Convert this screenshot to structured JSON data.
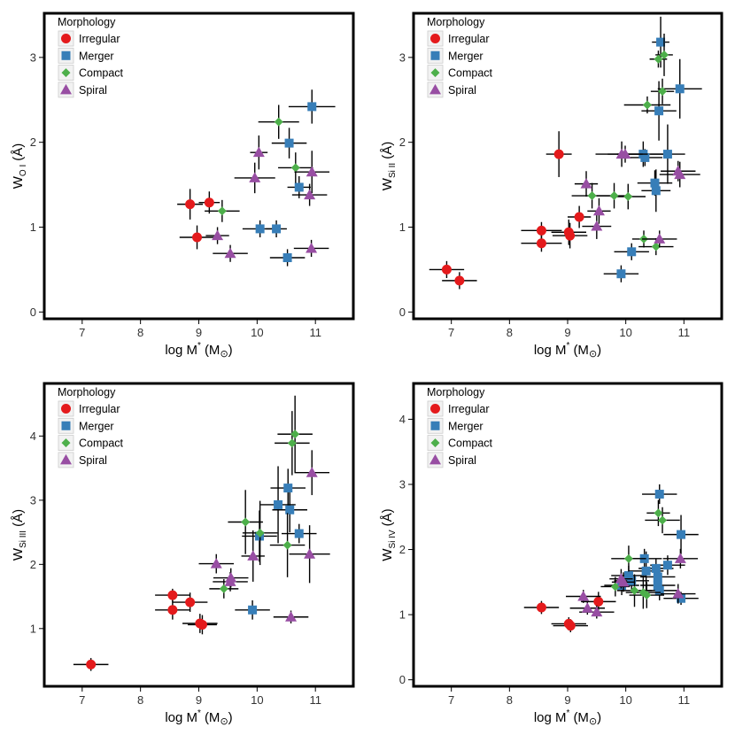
{
  "legend": {
    "title": "Morphology",
    "entries": [
      "Irregular",
      "Merger",
      "Compact",
      "Spiral"
    ]
  },
  "colors": {
    "Irregular": "#e41a1c",
    "Merger": "#377eb8",
    "Compact": "#4daf4a",
    "Spiral": "#984ea3",
    "errorbar": "#000000",
    "axes": "#000000"
  },
  "chart_data": [
    {
      "type": "scatter",
      "ylabel_base": "W",
      "ylabel_sub": "O I",
      "ylabel_unit": "(Å)",
      "xlabel_main": "log M",
      "xlabel_sup": "*",
      "xlabel_unit": "(M",
      "xlabel_unit_sym": "⊙",
      "xlabel_close": ")",
      "xlim": [
        6.35,
        11.65
      ],
      "ylim": [
        -0.08,
        3.52
      ],
      "xticks": [
        "7",
        "8",
        "9",
        "10",
        "11"
      ],
      "yticks": [
        "0",
        "1",
        "2",
        "3"
      ],
      "legend": "top-left",
      "grid": false,
      "series": [
        {
          "name": "Irregular",
          "marker": "circle",
          "points": [
            {
              "x": 8.85,
              "y": 1.27,
              "xerr": 0.22,
              "yerr": 0.18
            },
            {
              "x": 9.18,
              "y": 1.29,
              "xerr": 0.18,
              "yerr": 0.13
            },
            {
              "x": 8.97,
              "y": 0.88,
              "xerr": 0.3,
              "yerr": 0.14
            }
          ]
        },
        {
          "name": "Merger",
          "marker": "square",
          "points": [
            {
              "x": 10.94,
              "y": 2.42,
              "xerr": 0.4,
              "yerr": 0.2
            },
            {
              "x": 10.55,
              "y": 1.99,
              "xerr": 0.3,
              "yerr": 0.18
            },
            {
              "x": 10.72,
              "y": 1.47,
              "xerr": 0.2,
              "yerr": 0.13
            },
            {
              "x": 10.05,
              "y": 0.98,
              "xerr": 0.3,
              "yerr": 0.1
            },
            {
              "x": 10.33,
              "y": 0.98,
              "xerr": 0.18,
              "yerr": 0.1
            },
            {
              "x": 10.52,
              "y": 0.64,
              "xerr": 0.3,
              "yerr": 0.1
            }
          ]
        },
        {
          "name": "Compact",
          "marker": "diamond",
          "points": [
            {
              "x": 10.37,
              "y": 2.24,
              "xerr": 0.35,
              "yerr": 0.2
            },
            {
              "x": 10.66,
              "y": 1.7,
              "xerr": 0.3,
              "yerr": 0.18
            },
            {
              "x": 9.4,
              "y": 1.19,
              "xerr": 0.3,
              "yerr": 0.13
            }
          ]
        },
        {
          "name": "Spiral",
          "marker": "triangle",
          "points": [
            {
              "x": 10.03,
              "y": 1.88,
              "xerr": 0.15,
              "yerr": 0.2
            },
            {
              "x": 9.96,
              "y": 1.58,
              "xerr": 0.35,
              "yerr": 0.18
            },
            {
              "x": 10.94,
              "y": 1.65,
              "xerr": 0.3,
              "yerr": 0.25
            },
            {
              "x": 10.9,
              "y": 1.38,
              "xerr": 0.3,
              "yerr": 0.13
            },
            {
              "x": 9.32,
              "y": 0.9,
              "xerr": 0.2,
              "yerr": 0.1
            },
            {
              "x": 9.54,
              "y": 0.69,
              "xerr": 0.3,
              "yerr": 0.1
            },
            {
              "x": 10.93,
              "y": 0.75,
              "xerr": 0.3,
              "yerr": 0.1
            }
          ]
        }
      ]
    },
    {
      "type": "scatter",
      "ylabel_base": "W",
      "ylabel_sub": "Si II",
      "ylabel_unit": "(Å)",
      "xlabel_main": "log M",
      "xlabel_sup": "*",
      "xlabel_unit": "(M",
      "xlabel_unit_sym": "⊙",
      "xlabel_close": ")",
      "xlim": [
        6.35,
        11.65
      ],
      "ylim": [
        -0.08,
        3.52
      ],
      "xticks": [
        "7",
        "8",
        "9",
        "10",
        "11"
      ],
      "yticks": [
        "0",
        "1",
        "2",
        "3"
      ],
      "legend": "top-left",
      "grid": false,
      "series": [
        {
          "name": "Irregular",
          "marker": "circle",
          "points": [
            {
              "x": 8.85,
              "y": 1.86,
              "xerr": 0.22,
              "yerr": 0.27
            },
            {
              "x": 9.2,
              "y": 1.12,
              "xerr": 0.2,
              "yerr": 0.13
            },
            {
              "x": 8.55,
              "y": 0.96,
              "xerr": 0.35,
              "yerr": 0.1
            },
            {
              "x": 9.02,
              "y": 0.94,
              "xerr": 0.3,
              "yerr": 0.15
            },
            {
              "x": 9.04,
              "y": 0.9,
              "xerr": 0.3,
              "yerr": 0.15
            },
            {
              "x": 8.55,
              "y": 0.81,
              "xerr": 0.35,
              "yerr": 0.1
            },
            {
              "x": 6.92,
              "y": 0.5,
              "xerr": 0.3,
              "yerr": 0.1
            },
            {
              "x": 7.14,
              "y": 0.37,
              "xerr": 0.3,
              "yerr": 0.1
            }
          ]
        },
        {
          "name": "Merger",
          "marker": "square",
          "points": [
            {
              "x": 10.6,
              "y": 3.18,
              "xerr": 0.15,
              "yerr": 0.3
            },
            {
              "x": 10.93,
              "y": 2.63,
              "xerr": 0.38,
              "yerr": 0.35
            },
            {
              "x": 10.57,
              "y": 2.37,
              "xerr": 0.3,
              "yerr": 0.35
            },
            {
              "x": 10.3,
              "y": 1.86,
              "xerr": 0.45,
              "yerr": 0.15
            },
            {
              "x": 10.33,
              "y": 1.82,
              "xerr": 0.3,
              "yerr": 0.1
            },
            {
              "x": 10.72,
              "y": 1.86,
              "xerr": 0.3,
              "yerr": 0.35
            },
            {
              "x": 10.5,
              "y": 1.52,
              "xerr": 0.3,
              "yerr": 0.15
            },
            {
              "x": 10.52,
              "y": 1.43,
              "xerr": 0.25,
              "yerr": 0.25
            },
            {
              "x": 10.1,
              "y": 0.71,
              "xerr": 0.3,
              "yerr": 0.1
            },
            {
              "x": 9.92,
              "y": 0.45,
              "xerr": 0.3,
              "yerr": 0.1
            }
          ]
        },
        {
          "name": "Compact",
          "marker": "diamond",
          "points": [
            {
              "x": 10.66,
              "y": 3.03,
              "xerr": 0.15,
              "yerr": 0.25
            },
            {
              "x": 10.56,
              "y": 2.98,
              "xerr": 0.15,
              "yerr": 0.1
            },
            {
              "x": 10.63,
              "y": 2.6,
              "xerr": 0.2,
              "yerr": 0.15
            },
            {
              "x": 10.37,
              "y": 2.44,
              "xerr": 0.4,
              "yerr": 0.1
            },
            {
              "x": 9.42,
              "y": 1.37,
              "xerr": 0.35,
              "yerr": 0.15
            },
            {
              "x": 9.8,
              "y": 1.37,
              "xerr": 0.3,
              "yerr": 0.15
            },
            {
              "x": 10.04,
              "y": 1.36,
              "xerr": 0.3,
              "yerr": 0.15
            },
            {
              "x": 10.31,
              "y": 0.86,
              "xerr": 0.2,
              "yerr": 0.1
            },
            {
              "x": 10.52,
              "y": 0.77,
              "xerr": 0.3,
              "yerr": 0.1
            }
          ]
        },
        {
          "name": "Spiral",
          "marker": "triangle",
          "points": [
            {
              "x": 9.93,
              "y": 1.86,
              "xerr": 0.45,
              "yerr": 0.15
            },
            {
              "x": 9.99,
              "y": 1.86,
              "xerr": 0.3,
              "yerr": 0.1
            },
            {
              "x": 10.9,
              "y": 1.66,
              "xerr": 0.3,
              "yerr": 0.12
            },
            {
              "x": 10.93,
              "y": 1.62,
              "xerr": 0.35,
              "yerr": 0.15
            },
            {
              "x": 9.32,
              "y": 1.51,
              "xerr": 0.2,
              "yerr": 0.15
            },
            {
              "x": 9.54,
              "y": 1.19,
              "xerr": 0.2,
              "yerr": 0.15
            },
            {
              "x": 9.5,
              "y": 1.01,
              "xerr": 0.25,
              "yerr": 0.15
            },
            {
              "x": 10.58,
              "y": 0.86,
              "xerr": 0.3,
              "yerr": 0.1
            }
          ]
        }
      ]
    },
    {
      "type": "scatter",
      "ylabel_base": "W",
      "ylabel_sub": "Si III",
      "ylabel_unit": "(Å)",
      "xlabel_main": "log M",
      "xlabel_sup": "*",
      "xlabel_unit": "(M",
      "xlabel_unit_sym": "⊙",
      "xlabel_close": ")",
      "xlim": [
        6.35,
        11.65
      ],
      "ylim": [
        0.1,
        4.82
      ],
      "xticks": [
        "7",
        "8",
        "9",
        "10",
        "11"
      ],
      "yticks": [
        "1",
        "2",
        "3",
        "4"
      ],
      "legend": "top-left",
      "grid": false,
      "series": [
        {
          "name": "Irregular",
          "marker": "circle",
          "points": [
            {
              "x": 8.55,
              "y": 1.52,
              "xerr": 0.3,
              "yerr": 0.1
            },
            {
              "x": 8.85,
              "y": 1.41,
              "xerr": 0.3,
              "yerr": 0.15
            },
            {
              "x": 8.55,
              "y": 1.29,
              "xerr": 0.3,
              "yerr": 0.15
            },
            {
              "x": 9.02,
              "y": 1.08,
              "xerr": 0.3,
              "yerr": 0.15
            },
            {
              "x": 9.06,
              "y": 1.06,
              "xerr": 0.25,
              "yerr": 0.15
            },
            {
              "x": 7.15,
              "y": 0.44,
              "xerr": 0.3,
              "yerr": 0.1
            }
          ]
        },
        {
          "name": "Merger",
          "marker": "square",
          "points": [
            {
              "x": 10.53,
              "y": 3.19,
              "xerr": 0.3,
              "yerr": 0.3
            },
            {
              "x": 10.36,
              "y": 2.93,
              "xerr": 0.3,
              "yerr": 0.6
            },
            {
              "x": 10.56,
              "y": 2.85,
              "xerr": 0.3,
              "yerr": 0.35
            },
            {
              "x": 10.72,
              "y": 2.48,
              "xerr": 0.3,
              "yerr": 0.15
            },
            {
              "x": 10.04,
              "y": 2.44,
              "xerr": 0.3,
              "yerr": 0.4
            },
            {
              "x": 9.92,
              "y": 1.29,
              "xerr": 0.3,
              "yerr": 0.15
            }
          ]
        },
        {
          "name": "Compact",
          "marker": "diamond",
          "points": [
            {
              "x": 10.65,
              "y": 4.03,
              "xerr": 0.3,
              "yerr": 0.6
            },
            {
              "x": 10.6,
              "y": 3.89,
              "xerr": 0.3,
              "yerr": 0.5
            },
            {
              "x": 9.8,
              "y": 2.66,
              "xerr": 0.3,
              "yerr": 0.5
            },
            {
              "x": 10.05,
              "y": 2.49,
              "xerr": 0.3,
              "yerr": 0.5
            },
            {
              "x": 10.52,
              "y": 2.3,
              "xerr": 0.3,
              "yerr": 0.5
            },
            {
              "x": 9.43,
              "y": 1.62,
              "xerr": 0.25,
              "yerr": 0.15
            }
          ]
        },
        {
          "name": "Spiral",
          "marker": "triangle",
          "points": [
            {
              "x": 10.94,
              "y": 3.43,
              "xerr": 0.3,
              "yerr": 0.35
            },
            {
              "x": 9.3,
              "y": 2.01,
              "xerr": 0.3,
              "yerr": 0.15
            },
            {
              "x": 9.93,
              "y": 2.13,
              "xerr": 0.2,
              "yerr": 0.4
            },
            {
              "x": 10.9,
              "y": 2.16,
              "xerr": 0.35,
              "yerr": 0.45
            },
            {
              "x": 9.55,
              "y": 1.79,
              "xerr": 0.3,
              "yerr": 0.15
            },
            {
              "x": 9.54,
              "y": 1.73,
              "xerr": 0.3,
              "yerr": 0.15
            },
            {
              "x": 10.58,
              "y": 1.18,
              "xerr": 0.3,
              "yerr": 0.1
            }
          ]
        }
      ]
    },
    {
      "type": "scatter",
      "ylabel_base": "W",
      "ylabel_sub": "Si IV",
      "ylabel_unit": "(Å)",
      "xlabel_main": "log M",
      "xlabel_sup": "*",
      "xlabel_unit": "(M",
      "xlabel_unit_sym": "⊙",
      "xlabel_close": ")",
      "xlim": [
        6.35,
        11.65
      ],
      "ylim": [
        -0.1,
        4.55
      ],
      "xticks": [
        "7",
        "8",
        "9",
        "10",
        "11"
      ],
      "yticks": [
        "0",
        "1",
        "2",
        "3",
        "4"
      ],
      "legend": "top-left",
      "grid": false,
      "series": [
        {
          "name": "Irregular",
          "marker": "circle",
          "points": [
            {
              "x": 8.55,
              "y": 1.11,
              "xerr": 0.3,
              "yerr": 0.1
            },
            {
              "x": 9.53,
              "y": 1.2,
              "xerr": 0.3,
              "yerr": 0.15
            },
            {
              "x": 9.02,
              "y": 0.86,
              "xerr": 0.3,
              "yerr": 0.1
            },
            {
              "x": 9.05,
              "y": 0.83,
              "xerr": 0.3,
              "yerr": 0.1
            }
          ]
        },
        {
          "name": "Merger",
          "marker": "square",
          "points": [
            {
              "x": 10.58,
              "y": 2.85,
              "xerr": 0.3,
              "yerr": 0.15
            },
            {
              "x": 10.95,
              "y": 2.23,
              "xerr": 0.3,
              "yerr": 0.3
            },
            {
              "x": 10.32,
              "y": 1.86,
              "xerr": 0.3,
              "yerr": 0.15
            },
            {
              "x": 10.52,
              "y": 1.71,
              "xerr": 0.3,
              "yerr": 0.15
            },
            {
              "x": 10.72,
              "y": 1.76,
              "xerr": 0.3,
              "yerr": 0.15
            },
            {
              "x": 10.35,
              "y": 1.67,
              "xerr": 0.3,
              "yerr": 0.3
            },
            {
              "x": 10.55,
              "y": 1.58,
              "xerr": 0.3,
              "yerr": 0.15
            },
            {
              "x": 10.05,
              "y": 1.6,
              "xerr": 0.3,
              "yerr": 0.15
            },
            {
              "x": 10.1,
              "y": 1.52,
              "xerr": 0.3,
              "yerr": 0.15
            },
            {
              "x": 9.93,
              "y": 1.45,
              "xerr": 0.3,
              "yerr": 0.15
            },
            {
              "x": 10.55,
              "y": 1.45,
              "xerr": 0.3,
              "yerr": 0.15
            },
            {
              "x": 10.58,
              "y": 1.37,
              "xerr": 0.3,
              "yerr": 0.15
            },
            {
              "x": 10.95,
              "y": 1.25,
              "xerr": 0.3,
              "yerr": 0.1
            }
          ]
        },
        {
          "name": "Compact",
          "marker": "diamond",
          "points": [
            {
              "x": 10.56,
              "y": 2.56,
              "xerr": 0.2,
              "yerr": 0.2
            },
            {
              "x": 10.63,
              "y": 2.45,
              "xerr": 0.3,
              "yerr": 0.2
            },
            {
              "x": 10.05,
              "y": 1.86,
              "xerr": 0.3,
              "yerr": 0.2
            },
            {
              "x": 9.82,
              "y": 1.43,
              "xerr": 0.25,
              "yerr": 0.15
            },
            {
              "x": 10.15,
              "y": 1.37,
              "xerr": 0.3,
              "yerr": 0.25
            },
            {
              "x": 10.3,
              "y": 1.34,
              "xerr": 0.3,
              "yerr": 0.25
            },
            {
              "x": 10.36,
              "y": 1.3,
              "xerr": 0.3,
              "yerr": 0.2
            }
          ]
        },
        {
          "name": "Spiral",
          "marker": "triangle",
          "points": [
            {
              "x": 10.94,
              "y": 1.86,
              "xerr": 0.3,
              "yerr": 0.15
            },
            {
              "x": 9.92,
              "y": 1.55,
              "xerr": 0.2,
              "yerr": 0.15
            },
            {
              "x": 9.96,
              "y": 1.5,
              "xerr": 0.2,
              "yerr": 0.15
            },
            {
              "x": 9.27,
              "y": 1.28,
              "xerr": 0.3,
              "yerr": 0.1
            },
            {
              "x": 9.34,
              "y": 1.1,
              "xerr": 0.3,
              "yerr": 0.1
            },
            {
              "x": 9.5,
              "y": 1.04,
              "xerr": 0.3,
              "yerr": 0.1
            },
            {
              "x": 10.9,
              "y": 1.32,
              "xerr": 0.3,
              "yerr": 0.15
            }
          ]
        }
      ]
    }
  ]
}
